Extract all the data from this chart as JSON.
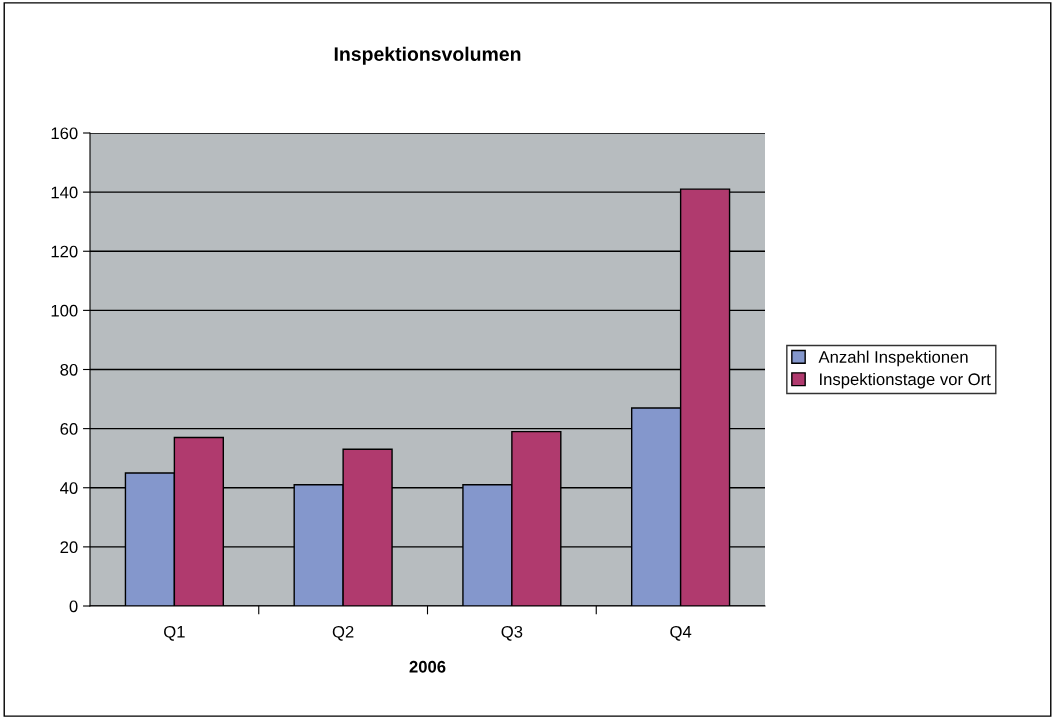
{
  "chart_data": {
    "type": "bar",
    "title": "Inspektionsvolumen",
    "xlabel": "2006",
    "categories": [
      "Q1",
      "Q2",
      "Q3",
      "Q4"
    ],
    "series": [
      {
        "name": "Anzahl Inspektionen",
        "color": "#8497cc",
        "values": [
          45,
          41,
          41,
          67
        ]
      },
      {
        "name": "Inspektionstage vor Ort",
        "color": "#b03a6e",
        "values": [
          57,
          53,
          59,
          141
        ]
      }
    ],
    "ylim": [
      0,
      160
    ],
    "yticks": [
      0,
      20,
      40,
      60,
      80,
      100,
      120,
      140,
      160
    ],
    "grid": "y",
    "legend": "right"
  }
}
